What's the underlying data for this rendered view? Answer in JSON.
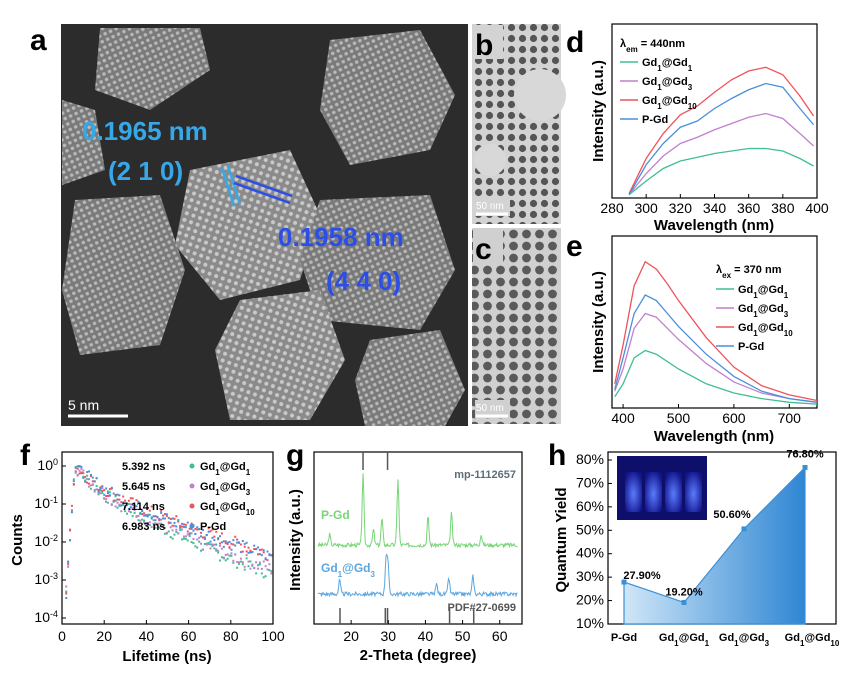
{
  "panels": {
    "a": {
      "label": "a",
      "scale_bar": "5 nm",
      "d1_value": "0.1965 nm",
      "d1_plane": "(2 1 0)",
      "d2_value": "0.1958 nm",
      "d2_plane": "(4 4 0)"
    },
    "b": {
      "label": "b",
      "scale_bar": "50 nm"
    },
    "c": {
      "label": "c",
      "scale_bar": "50 nm"
    },
    "d": {
      "label": "d"
    },
    "e": {
      "label": "e"
    },
    "f": {
      "label": "f"
    },
    "g": {
      "label": "g"
    },
    "h": {
      "label": "h"
    }
  },
  "colors": {
    "gd1": "#3fbf8f",
    "gd3": "#c27fcf",
    "gd10": "#f0525a",
    "pgd": "#4a90d9",
    "xrd_pgd": "#77d577",
    "xrd_gd": "#5aa6e0",
    "qy": "#3a8fd6"
  },
  "chart_data": [
    {
      "panel": "d",
      "type": "line",
      "xlabel": "Wavelength (nm)",
      "ylabel": "Intensity (a.u.)",
      "xlim": [
        280,
        400
      ],
      "xticks": [
        "280",
        "300",
        "320",
        "340",
        "360",
        "380",
        "400"
      ],
      "legend_title_main": "λ",
      "legend_title_sub": "em",
      "legend_title_rest": " = 440nm",
      "series": [
        {
          "name": "Gd1@Gd1",
          "main": "Gd",
          "s1": "1",
          "mid": "@Gd",
          "s2": "1",
          "color": "gd1",
          "x": [
            290,
            300,
            310,
            320,
            330,
            340,
            350,
            360,
            370,
            380,
            390,
            398
          ],
          "y": [
            0.01,
            0.12,
            0.22,
            0.28,
            0.31,
            0.34,
            0.36,
            0.38,
            0.38,
            0.36,
            0.3,
            0.24
          ]
        },
        {
          "name": "Gd1@Gd3",
          "main": "Gd",
          "s1": "1",
          "mid": "@Gd",
          "s2": "3",
          "color": "gd3",
          "x": [
            290,
            300,
            310,
            320,
            330,
            340,
            350,
            360,
            370,
            380,
            390,
            398
          ],
          "y": [
            0.01,
            0.18,
            0.32,
            0.42,
            0.47,
            0.53,
            0.58,
            0.63,
            0.66,
            0.62,
            0.5,
            0.4
          ]
        },
        {
          "name": "Gd1@Gd10",
          "main": "Gd",
          "s1": "1",
          "mid": "@Gd",
          "s2": "10",
          "color": "gd10",
          "x": [
            290,
            300,
            310,
            320,
            330,
            340,
            350,
            360,
            370,
            380,
            390,
            398
          ],
          "y": [
            0.02,
            0.3,
            0.5,
            0.65,
            0.72,
            0.83,
            0.93,
            1.0,
            1.03,
            0.97,
            0.8,
            0.64
          ]
        },
        {
          "name": "P-Gd",
          "main": "P-Gd",
          "s1": "",
          "mid": "",
          "s2": "",
          "color": "pgd",
          "x": [
            290,
            300,
            310,
            320,
            330,
            340,
            350,
            360,
            370,
            380,
            390,
            398
          ],
          "y": [
            0.01,
            0.25,
            0.42,
            0.55,
            0.6,
            0.7,
            0.78,
            0.85,
            0.9,
            0.87,
            0.7,
            0.57
          ]
        }
      ]
    },
    {
      "panel": "e",
      "type": "line",
      "xlabel": "Wavelength (nm)",
      "ylabel": "Intensity (a.u.)",
      "xlim": [
        380,
        750
      ],
      "xticks": [
        "400",
        "500",
        "600",
        "700"
      ],
      "legend_title_main": "λ",
      "legend_title_sub": "ex",
      "legend_title_rest": " = 370 nm",
      "series": [
        {
          "name": "Gd1@Gd1",
          "main": "Gd",
          "s1": "1",
          "mid": "@Gd",
          "s2": "1",
          "color": "gd1",
          "x": [
            385,
            400,
            420,
            440,
            460,
            480,
            500,
            550,
            600,
            650,
            700,
            750
          ],
          "y": [
            0.05,
            0.12,
            0.26,
            0.3,
            0.28,
            0.24,
            0.2,
            0.12,
            0.07,
            0.04,
            0.02,
            0.01
          ]
        },
        {
          "name": "Gd1@Gd3",
          "main": "Gd",
          "s1": "1",
          "mid": "@Gd",
          "s2": "3",
          "color": "gd3",
          "x": [
            385,
            400,
            420,
            440,
            460,
            480,
            500,
            550,
            600,
            650,
            700,
            750
          ],
          "y": [
            0.08,
            0.2,
            0.42,
            0.5,
            0.48,
            0.42,
            0.36,
            0.23,
            0.13,
            0.07,
            0.04,
            0.02
          ]
        },
        {
          "name": "Gd1@Gd10",
          "main": "Gd",
          "s1": "1",
          "mid": "@Gd",
          "s2": "10",
          "color": "gd10",
          "x": [
            385,
            400,
            420,
            440,
            460,
            480,
            500,
            550,
            600,
            650,
            700,
            750
          ],
          "y": [
            0.12,
            0.33,
            0.65,
            0.78,
            0.74,
            0.66,
            0.57,
            0.37,
            0.21,
            0.11,
            0.06,
            0.03
          ]
        },
        {
          "name": "P-Gd",
          "main": "P-Gd",
          "s1": "",
          "mid": "",
          "s2": "",
          "color": "pgd",
          "x": [
            385,
            400,
            420,
            440,
            460,
            480,
            500,
            550,
            600,
            650,
            700,
            750
          ],
          "y": [
            0.09,
            0.26,
            0.5,
            0.6,
            0.57,
            0.5,
            0.43,
            0.28,
            0.16,
            0.08,
            0.04,
            0.02
          ]
        }
      ]
    },
    {
      "panel": "f",
      "type": "scatter",
      "xlabel": "Lifetime (ns)",
      "ylabel": "Counts",
      "xlim": [
        0,
        100
      ],
      "ylim_log": [
        -4,
        0
      ],
      "xticks": [
        "0",
        "20",
        "40",
        "60",
        "80",
        "100"
      ],
      "yticks": [
        {
          "base": "10",
          "exp": "0"
        },
        {
          "base": "10",
          "exp": "-1"
        },
        {
          "base": "10",
          "exp": "-2"
        },
        {
          "base": "10",
          "exp": "-3"
        },
        {
          "base": "10",
          "exp": "-4"
        }
      ],
      "series": [
        {
          "name": "Gd1@Gd1",
          "lifetime": "5.392 ns",
          "main": "Gd",
          "s1": "1",
          "mid": "@Gd",
          "s2": "1",
          "color": "gd1",
          "tau": 5.392,
          "floor": 0.00055
        },
        {
          "name": "Gd1@Gd3",
          "lifetime": "5.645 ns",
          "main": "Gd",
          "s1": "1",
          "mid": "@Gd",
          "s2": "3",
          "color": "gd3",
          "tau": 5.645,
          "floor": 0.0007
        },
        {
          "name": "Gd1@Gd10",
          "lifetime": "7.114 ns",
          "main": "Gd",
          "s1": "1",
          "mid": "@Gd",
          "s2": "10",
          "color": "gd10",
          "tau": 7.114,
          "floor": 0.00085
        },
        {
          "name": "P-Gd",
          "lifetime": "6.983 ns",
          "main": "P-Gd",
          "s1": "",
          "mid": "",
          "s2": "",
          "color": "pgd",
          "tau": 6.983,
          "floor": 0.0006
        }
      ]
    },
    {
      "panel": "g",
      "type": "line",
      "xlabel": "2-Theta (degree)",
      "ylabel": "Intensity (a.u.)",
      "xlim": [
        10,
        66
      ],
      "xticks": [
        "20",
        "30",
        "40",
        "50",
        "60"
      ],
      "ref_top": "mp-1112657",
      "ref_bottom": "PDF#27-0699",
      "ref_top_peaks": [
        23.2,
        29.8
      ],
      "ref_bottom_peaks": [
        17.0,
        29.2,
        29.8,
        46.5,
        53.0
      ],
      "series": [
        {
          "name": "P-Gd",
          "label_main": "P-Gd",
          "label_s1": "",
          "label_mid": "",
          "label_s2": "",
          "color": "xrd_pgd",
          "peaks": [
            [
              14.2,
              0.15
            ],
            [
              23.2,
              1.0
            ],
            [
              26.0,
              0.22
            ],
            [
              28.3,
              0.38
            ],
            [
              32.6,
              0.95
            ],
            [
              40.7,
              0.4
            ],
            [
              47.0,
              0.45
            ],
            [
              55.0,
              0.15
            ]
          ]
        },
        {
          "name": "Gd1@Gd3",
          "label_main": "Gd",
          "label_s1": "1",
          "label_mid": "@Gd",
          "label_s2": "3",
          "color": "xrd_gd",
          "peaks": [
            [
              16.9,
              0.35
            ],
            [
              29.4,
              0.9
            ],
            [
              29.9,
              0.75
            ],
            [
              43.0,
              0.25
            ],
            [
              46.3,
              0.4
            ],
            [
              52.8,
              0.45
            ]
          ]
        }
      ]
    },
    {
      "panel": "h",
      "type": "area",
      "ylabel": "Quantum Yield",
      "categories": [
        {
          "main": "P-Gd",
          "s1": "",
          "mid": "",
          "s2": ""
        },
        {
          "main": "Gd",
          "s1": "1",
          "mid": "@Gd",
          "s2": "1"
        },
        {
          "main": "Gd",
          "s1": "1",
          "mid": "@Gd",
          "s2": "3"
        },
        {
          "main": "Gd",
          "s1": "1",
          "mid": "@Gd",
          "s2": "10"
        }
      ],
      "values": [
        27.9,
        19.2,
        50.6,
        76.8
      ],
      "value_labels": [
        "27.90%",
        "19.20%",
        "50.60%",
        "76.80%"
      ],
      "ylim": [
        10,
        80
      ],
      "yticks": [
        "10%",
        "20%",
        "30%",
        "40%",
        "50%",
        "60%",
        "70%",
        "80%"
      ]
    }
  ]
}
